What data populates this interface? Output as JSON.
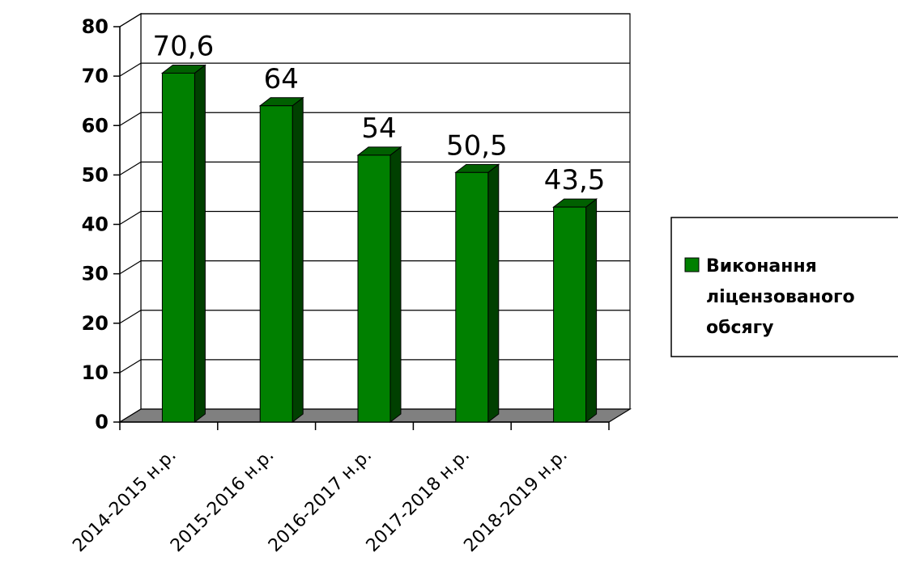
{
  "chart_data": {
    "type": "bar",
    "categories": [
      "2014-2015 н.р.",
      "2015-2016 н.р.",
      "2016-2017 н.р.",
      "2017-2018 н.р.",
      "2018-2019 н.р."
    ],
    "series": [
      {
        "name": "Виконання ліцензованого обсягу",
        "values": [
          70.6,
          64,
          54,
          50.5,
          43.5
        ]
      }
    ],
    "data_labels": [
      "70,6",
      "64",
      "54",
      "50,5",
      "43,5"
    ],
    "yticks": [
      "0",
      "10",
      "20",
      "30",
      "40",
      "50",
      "60",
      "70",
      "80"
    ],
    "ylim": [
      0,
      80
    ],
    "grid": true,
    "style": "3d",
    "legend_position": "right",
    "legend_lines": [
      "Виконання",
      "ліцензованого",
      "обсягу"
    ],
    "colors": {
      "bar_front": "#008000",
      "bar_side": "#004000",
      "bar_top": "#006000",
      "floor": "#808080",
      "grid": "#000000"
    }
  }
}
